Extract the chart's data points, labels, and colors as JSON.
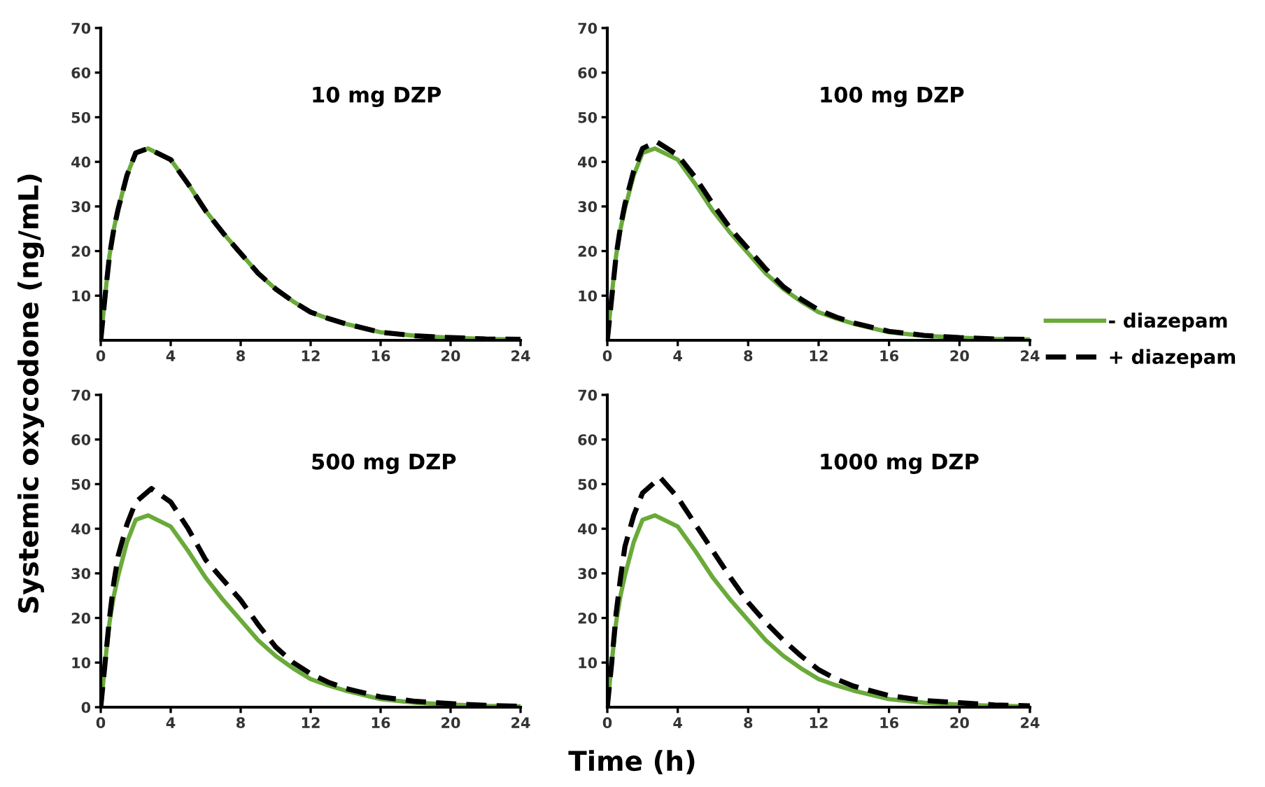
{
  "chart_data": [
    {
      "type": "line",
      "ylabel": "Systemic oxycodone (ng/mL)",
      "annotations": [
        "10 mg DZP"
      ],
      "xlim": [
        0,
        24
      ],
      "xticks": [
        0,
        4,
        8,
        12,
        16,
        20,
        24
      ],
      "ylim": [
        0,
        70
      ],
      "yticks": [
        10,
        20,
        30,
        40,
        50,
        60,
        70
      ],
      "grid": false,
      "series": [
        {
          "color": "#6aaa3a",
          "line_style": "solid",
          "x": [
            0,
            0.25,
            0.5,
            0.75,
            1,
            1.5,
            2,
            2.7,
            4,
            5,
            6,
            7,
            8,
            9,
            10,
            11,
            12,
            13,
            14,
            16,
            18,
            20,
            22,
            24
          ],
          "values": [
            0,
            10,
            19,
            25,
            29.5,
            37,
            42,
            43,
            40.5,
            35,
            29,
            24,
            19.5,
            15,
            11.5,
            8.7,
            6.3,
            4.9,
            3.7,
            1.8,
            1,
            0.6,
            0.3,
            0.2
          ]
        },
        {
          "color": "#000000",
          "line_style": "dashed",
          "x": [
            0,
            0.25,
            0.5,
            0.75,
            1,
            1.5,
            2,
            2.7,
            4,
            5,
            6,
            7,
            8,
            9,
            10,
            11,
            12,
            13,
            14,
            16,
            18,
            20,
            22,
            24
          ],
          "values": [
            0,
            10,
            19,
            25,
            29.5,
            37,
            42,
            43,
            40.5,
            35,
            29,
            24,
            19.5,
            15,
            11.5,
            8.7,
            6.3,
            4.9,
            3.7,
            1.8,
            1,
            0.6,
            0.3,
            0.2
          ]
        }
      ]
    },
    {
      "type": "line",
      "annotations": [
        "100 mg DZP"
      ],
      "xlim": [
        0,
        24
      ],
      "xticks": [
        0,
        4,
        8,
        12,
        16,
        20,
        24
      ],
      "ylim": [
        0,
        70
      ],
      "yticks": [
        10,
        20,
        30,
        40,
        50,
        60,
        70
      ],
      "grid": false,
      "legend": "right",
      "series": [
        {
          "name": "- diazepam",
          "color": "#6aaa3a",
          "line_style": "solid",
          "x": [
            0,
            0.25,
            0.5,
            0.75,
            1,
            1.5,
            2,
            2.7,
            4,
            5,
            6,
            7,
            8,
            9,
            10,
            11,
            12,
            13,
            14,
            16,
            18,
            20,
            22,
            24
          ],
          "values": [
            0,
            10,
            19,
            25,
            29.5,
            37,
            42,
            43,
            40.5,
            35,
            29,
            24,
            19.5,
            15,
            11.5,
            8.7,
            6.3,
            4.9,
            3.7,
            1.8,
            1,
            0.6,
            0.3,
            0.2
          ]
        },
        {
          "name": "+ diazepam",
          "color": "#000000",
          "line_style": "dashed",
          "x": [
            0,
            0.25,
            0.5,
            0.75,
            1,
            1.5,
            2,
            2.8,
            4,
            5,
            6,
            7,
            8,
            9,
            10,
            11,
            12,
            13,
            14,
            16,
            18,
            20,
            22,
            24
          ],
          "values": [
            0,
            9.5,
            19,
            25.5,
            30.5,
            38,
            43,
            44.5,
            41.5,
            36.5,
            30.5,
            25,
            20.5,
            16,
            12,
            9.2,
            6.8,
            5.2,
            3.9,
            2,
            1.1,
            0.6,
            0.3,
            0.2
          ]
        }
      ]
    },
    {
      "type": "line",
      "xlabel": "Time (h)",
      "annotations": [
        "500 mg DZP"
      ],
      "xlim": [
        0,
        24
      ],
      "xticks": [
        0,
        4,
        8,
        12,
        16,
        20,
        24
      ],
      "ylim": [
        0,
        70
      ],
      "yticks": [
        0,
        10,
        20,
        30,
        40,
        50,
        60,
        70
      ],
      "grid": false,
      "series": [
        {
          "color": "#6aaa3a",
          "line_style": "solid",
          "x": [
            0,
            0.25,
            0.5,
            0.75,
            1,
            1.5,
            2,
            2.7,
            4,
            5,
            6,
            7,
            8,
            9,
            10,
            11,
            12,
            13,
            14,
            16,
            18,
            20,
            22,
            24
          ],
          "values": [
            0,
            10,
            19,
            25,
            29.5,
            37,
            42,
            43,
            40.5,
            35,
            29,
            24,
            19.5,
            15,
            11.5,
            8.7,
            6.3,
            4.9,
            3.7,
            1.8,
            1,
            0.6,
            0.3,
            0.2
          ]
        },
        {
          "color": "#000000",
          "line_style": "dashed",
          "x": [
            0,
            0.25,
            0.5,
            0.75,
            1,
            1.5,
            2,
            2.9,
            4,
            5,
            6,
            7,
            8,
            9,
            10,
            11,
            12,
            13,
            14,
            16,
            18,
            20,
            22,
            24
          ],
          "values": [
            0,
            10,
            20,
            28,
            34,
            41,
            46,
            49,
            46,
            40,
            33,
            28.5,
            24,
            18.5,
            13.5,
            10,
            7.5,
            5.6,
            4.2,
            2.3,
            1.3,
            0.8,
            0.4,
            0.2
          ]
        }
      ]
    },
    {
      "type": "line",
      "annotations": [
        "1000 mg DZP"
      ],
      "xlim": [
        0,
        24
      ],
      "xticks": [
        0,
        4,
        8,
        12,
        16,
        20,
        24
      ],
      "ylim": [
        0,
        70
      ],
      "yticks": [
        10,
        20,
        30,
        40,
        50,
        60,
        70
      ],
      "grid": false,
      "series": [
        {
          "color": "#6aaa3a",
          "line_style": "solid",
          "x": [
            0,
            0.25,
            0.5,
            0.75,
            1,
            1.5,
            2,
            2.7,
            4,
            5,
            6,
            7,
            8,
            9,
            10,
            11,
            12,
            13,
            14,
            16,
            18,
            20,
            22,
            24
          ],
          "values": [
            0,
            10,
            19,
            25,
            29.5,
            37,
            42,
            43,
            40.5,
            35,
            29,
            24,
            19.5,
            15,
            11.5,
            8.7,
            6.3,
            4.9,
            3.7,
            1.8,
            1,
            0.6,
            0.3,
            0.2
          ]
        },
        {
          "color": "#000000",
          "line_style": "dashed",
          "x": [
            0,
            0.25,
            0.5,
            0.75,
            1,
            1.5,
            2,
            3,
            4,
            5,
            6,
            7,
            8,
            9,
            10,
            11,
            12,
            13,
            14,
            16,
            18,
            20,
            22,
            24
          ],
          "values": [
            0,
            10,
            21,
            29,
            36,
            43,
            48,
            51.5,
            47,
            41,
            35,
            29,
            23.5,
            19,
            15,
            11.5,
            8.4,
            6.3,
            4.7,
            2.6,
            1.5,
            1,
            0.5,
            0.3
          ]
        }
      ]
    }
  ]
}
